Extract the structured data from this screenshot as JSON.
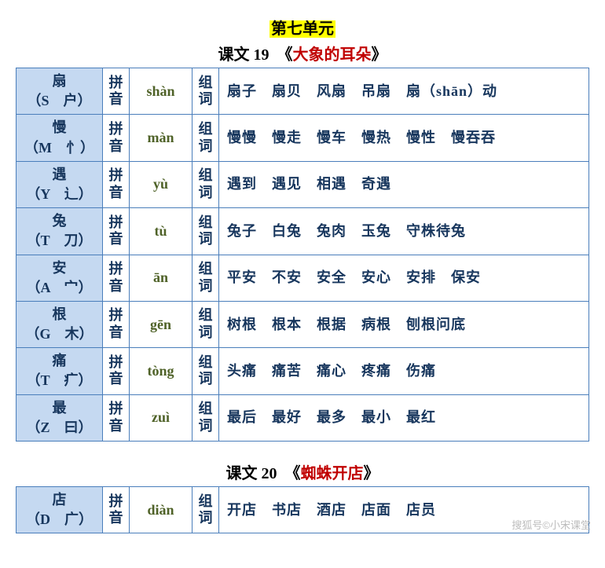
{
  "unit_title": "第七单元",
  "lesson1": {
    "prefix": "课文 19　《",
    "name": "大象的耳朵",
    "suffix": "》"
  },
  "lesson2": {
    "prefix": "课文 20　《",
    "name": "蜘蛛开店",
    "suffix": "》"
  },
  "py_label": "拼音",
  "zc_label": "组词",
  "rows1": [
    {
      "char": "扇",
      "key": "（S　户）",
      "pinyin": "shàn",
      "words": "扇子　扇贝　风扇　吊扇　扇（shān）动"
    },
    {
      "char": "慢",
      "key": "（M　忄）",
      "pinyin": "màn",
      "words": "慢慢　慢走　慢车　慢热　慢性　慢吞吞"
    },
    {
      "char": "遇",
      "key": "（Y　辶）",
      "pinyin": "yù",
      "words": "遇到　遇见　相遇　奇遇"
    },
    {
      "char": "兔",
      "key": "（T　刀）",
      "pinyin": "tù",
      "words": "兔子　白兔　兔肉　玉兔　守株待兔"
    },
    {
      "char": "安",
      "key": "（A　宀）",
      "pinyin": "ān",
      "words": "平安　不安　安全　安心　安排　保安"
    },
    {
      "char": "根",
      "key": "（G　木）",
      "pinyin": "gēn",
      "words": "树根　根本　根据　病根　刨根问底"
    },
    {
      "char": "痛",
      "key": "（T　疒）",
      "pinyin": "tòng",
      "words": "头痛　痛苦　痛心　疼痛　伤痛"
    },
    {
      "char": "最",
      "key": "（Z　曰）",
      "pinyin": "zuì",
      "words": "最后　最好　最多　最小　最红"
    }
  ],
  "rows2": [
    {
      "char": "店",
      "key": "（D　广）",
      "pinyin": "diàn",
      "words": "开店　书店　酒店　店面　店员"
    }
  ],
  "watermark": "搜狐号©小宋课堂"
}
